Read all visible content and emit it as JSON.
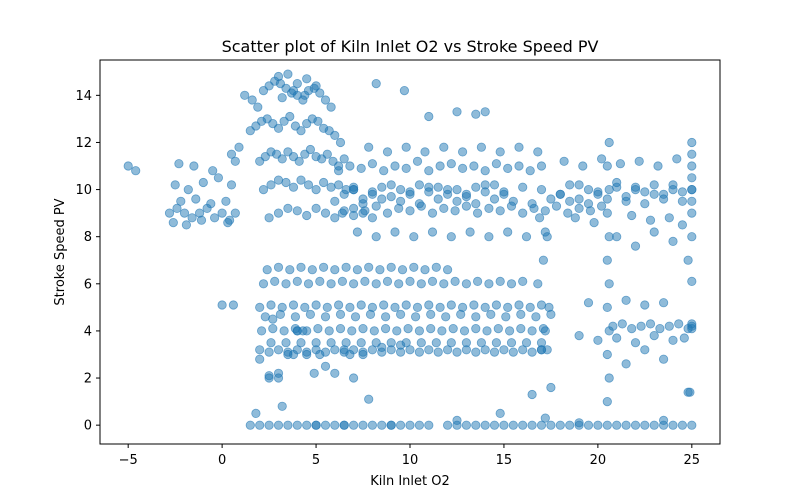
{
  "chart_data": {
    "type": "scatter",
    "title": "Scatter plot of Kiln Inlet O2 vs Stroke Speed PV",
    "xlabel": "Kiln Inlet O2",
    "ylabel": "Stroke Speed PV",
    "xlim": [
      -6.5,
      26.5
    ],
    "ylim": [
      -0.8,
      15.5
    ],
    "x_ticks": [
      -5,
      0,
      5,
      10,
      15,
      20,
      25
    ],
    "y_ticks": [
      0,
      2,
      4,
      6,
      8,
      10,
      12,
      14
    ],
    "grid": false,
    "legend": "none",
    "marker_color": "#1f77b4",
    "marker_alpha": 0.5,
    "series": [
      {
        "x": [
          -5.0,
          -4.6,
          -2.8,
          -2.4,
          -2.0,
          -1.6,
          -1.2,
          -0.8,
          -0.4,
          0.0,
          0.4,
          0.7,
          -2.5,
          -1.8,
          -1.0,
          -0.2,
          0.5,
          -2.2,
          -1.4,
          -0.6,
          0.2,
          -2.6,
          -1.9,
          -1.1,
          0.3,
          -2.3,
          -1.5,
          -0.5,
          0.0,
          0.6,
          0.9,
          0.5,
          0.7,
          1.2,
          1.6,
          1.9,
          2.2,
          2.5,
          2.8,
          3.1,
          3.4,
          3.7,
          4.0,
          4.3,
          4.6,
          4.9,
          5.2,
          5.5,
          5.8,
          1.5,
          1.8,
          2.1,
          2.4,
          2.7,
          3.0,
          3.3,
          3.6,
          3.9,
          4.2,
          4.5,
          4.8,
          5.1,
          5.4,
          5.7,
          6.0,
          6.3,
          2.0,
          2.3,
          2.6,
          2.9,
          3.2,
          3.5,
          3.8,
          4.1,
          4.4,
          4.7,
          5.0,
          5.3,
          5.6,
          5.9,
          6.2,
          6.5,
          2.2,
          2.6,
          3.0,
          3.4,
          3.8,
          4.2,
          4.6,
          5.0,
          5.4,
          5.8,
          6.2,
          6.6,
          7.0,
          2.5,
          3.0,
          3.5,
          4.0,
          4.5,
          5.0,
          5.5,
          6.0,
          6.5,
          7.0,
          7.5,
          8.0,
          3.0,
          3.5,
          4.0,
          4.5,
          5.0,
          3.2,
          3.8,
          4.4,
          6.0,
          6.5,
          7.0,
          7.5,
          8.0,
          8.5,
          9.0,
          9.5,
          10.0,
          10.5,
          11.0,
          11.5,
          12.0,
          12.5,
          13.0,
          13.5,
          14.0,
          14.5,
          15.0,
          6.2,
          6.8,
          7.4,
          8.0,
          8.6,
          9.2,
          9.8,
          10.4,
          11.0,
          11.6,
          12.2,
          12.8,
          13.4,
          14.0,
          14.6,
          15.2,
          15.8,
          16.4,
          17.0,
          6.4,
          7.0,
          7.6,
          8.2,
          8.8,
          9.4,
          10.0,
          10.6,
          11.2,
          11.8,
          12.4,
          13.0,
          13.6,
          14.2,
          14.8,
          15.4,
          16.0,
          16.6,
          17.2,
          17.8,
          18.4,
          19.0,
          19.6,
          20.2,
          7.0,
          8.0,
          9.0,
          10.0,
          11.0,
          12.0,
          13.0,
          14.0,
          15.0,
          16.0,
          17.0,
          18.0,
          19.0,
          20.0,
          21.0,
          22.0,
          23.0,
          24.0,
          25.0,
          7.5,
          8.5,
          9.5,
          10.5,
          11.5,
          12.5,
          13.5,
          14.5,
          15.5,
          16.5,
          17.5,
          18.5,
          19.5,
          20.5,
          21.5,
          22.5,
          23.5,
          24.5,
          7.2,
          8.2,
          9.2,
          10.2,
          11.2,
          12.2,
          13.2,
          14.2,
          15.2,
          16.2,
          17.2,
          7.8,
          8.8,
          9.8,
          10.8,
          11.8,
          12.8,
          13.8,
          14.8,
          15.8,
          16.8,
          2.0,
          2.5,
          3.0,
          3.5,
          4.0,
          4.5,
          5.0,
          5.5,
          6.0,
          6.5,
          7.0,
          7.5,
          8.0,
          8.5,
          9.0,
          9.5,
          10.0,
          10.5,
          11.0,
          11.5,
          12.0,
          12.5,
          13.0,
          13.5,
          14.0,
          14.5,
          15.0,
          15.5,
          16.0,
          16.5,
          17.0,
          17.3,
          2.1,
          2.7,
          3.3,
          3.9,
          4.5,
          5.1,
          5.7,
          6.3,
          6.9,
          7.5,
          8.1,
          8.7,
          9.3,
          9.9,
          10.5,
          11.1,
          11.7,
          12.3,
          12.9,
          13.5,
          14.1,
          14.7,
          15.3,
          15.9,
          16.5,
          17.1,
          2.3,
          3.1,
          3.9,
          4.7,
          5.5,
          6.3,
          7.1,
          7.9,
          8.7,
          9.5,
          10.3,
          11.1,
          11.9,
          12.7,
          13.5,
          14.3,
          15.1,
          15.9,
          16.7,
          17.5,
          2.0,
          2.6,
          3.2,
          3.8,
          4.4,
          5.0,
          5.6,
          6.2,
          6.8,
          7.4,
          8.0,
          8.6,
          9.2,
          9.8,
          10.4,
          11.0,
          11.6,
          12.2,
          12.8,
          13.4,
          14.0,
          14.6,
          15.2,
          15.8,
          16.4,
          17.0,
          2.2,
          2.8,
          3.4,
          4.0,
          4.6,
          5.2,
          5.8,
          6.4,
          7.0,
          7.6,
          8.2,
          8.8,
          9.4,
          10.0,
          10.6,
          11.2,
          11.8,
          12.4,
          13.0,
          13.6,
          14.2,
          14.8,
          15.4,
          16.0,
          2.4,
          3.0,
          3.6,
          4.2,
          4.8,
          5.4,
          6.0,
          6.6,
          7.2,
          7.8,
          8.4,
          9.0,
          9.6,
          10.2,
          10.8,
          11.4,
          12.0,
          2.6,
          3.4,
          4.2,
          5.0,
          5.8,
          6.6,
          7.4,
          8.2,
          9.0,
          9.8,
          10.6,
          11.4,
          12.2,
          13.0,
          13.8,
          14.6,
          15.4,
          16.2,
          17.0,
          17.0,
          17.2,
          17.4,
          16.8,
          17.1,
          17.3,
          16.9,
          20.5,
          20.6,
          20.5,
          20.6,
          20.5,
          20.6,
          20.5,
          20.6,
          20.5,
          20.6,
          20.5,
          20.6,
          25.0,
          25.0,
          25.0,
          25.0,
          25.0,
          25.0,
          25.0,
          25.0,
          25.0,
          25.0,
          25.0,
          25.0,
          24.8,
          24.9,
          18.0,
          18.5,
          19.0,
          19.5,
          20.0,
          21.0,
          21.5,
          22.0,
          22.5,
          23.0,
          23.5,
          24.0,
          24.5,
          18.2,
          19.2,
          20.2,
          21.2,
          22.2,
          23.2,
          24.2,
          18.8,
          19.8,
          21.8,
          22.8,
          23.8,
          19.0,
          20.0,
          21.0,
          22.0,
          23.0,
          24.0,
          24.6,
          19.5,
          21.5,
          22.5,
          23.5,
          20.8,
          21.3,
          21.8,
          22.3,
          22.8,
          23.3,
          23.8,
          24.3,
          24.8,
          21.0,
          22.0,
          23.0,
          24.0,
          24.5,
          22.5,
          23.5,
          21.5,
          1.5,
          2.0,
          2.5,
          3.0,
          3.5,
          4.0,
          4.5,
          5.0,
          5.5,
          6.0,
          6.5,
          7.0,
          7.5,
          8.0,
          8.5,
          9.0,
          9.5,
          10.0,
          10.5,
          11.0,
          12.0,
          12.5,
          13.0,
          13.5,
          14.0,
          14.5,
          15.0,
          15.5,
          16.0,
          16.5,
          17.0,
          17.5,
          18.0,
          18.5,
          19.0,
          19.5,
          20.0,
          20.5,
          21.0,
          21.5,
          22.0,
          22.5,
          23.0,
          23.5,
          24.0,
          24.5,
          25.0,
          1.8,
          3.2,
          7.8,
          14.8,
          17.2,
          2.5,
          3.0,
          2.0,
          3.0,
          4.0,
          6.0,
          7.0,
          12.5,
          16.5,
          17.5,
          19.0,
          23.5,
          24.8,
          5.0,
          6.5,
          9.0,
          4.0,
          4.3,
          3.8,
          5.2,
          6.8,
          9.7,
          8.2,
          11.0,
          12.5,
          13.5,
          14.0,
          2.5,
          4.9,
          2.7,
          3.5,
          4.5,
          5.5,
          6.5,
          7.5,
          8.5,
          9.5
        ],
        "y": [
          11.0,
          10.8,
          9.0,
          9.2,
          9.0,
          8.8,
          9.0,
          9.2,
          8.8,
          9.0,
          8.7,
          9.0,
          10.2,
          10.0,
          10.3,
          10.5,
          10.2,
          9.5,
          9.6,
          9.4,
          9.5,
          8.6,
          8.5,
          8.7,
          8.6,
          11.1,
          11.0,
          10.8,
          5.1,
          5.1,
          11.8,
          11.5,
          11.2,
          14.0,
          13.8,
          13.5,
          14.2,
          14.4,
          14.6,
          14.5,
          14.3,
          14.1,
          14.0,
          13.8,
          14.2,
          14.3,
          14.1,
          13.8,
          13.5,
          12.5,
          12.7,
          12.9,
          13.0,
          12.8,
          12.6,
          12.9,
          13.1,
          12.7,
          12.5,
          12.8,
          13.0,
          12.9,
          12.6,
          12.5,
          12.3,
          12.0,
          11.2,
          11.4,
          11.6,
          11.5,
          11.3,
          11.6,
          11.4,
          11.2,
          11.5,
          11.7,
          11.4,
          11.3,
          11.5,
          11.2,
          11.0,
          11.3,
          10.0,
          10.2,
          10.4,
          10.3,
          10.1,
          10.4,
          10.2,
          10.0,
          10.3,
          10.1,
          10.2,
          10.0,
          10.1,
          8.8,
          9.0,
          9.2,
          9.1,
          8.9,
          9.2,
          9.0,
          8.8,
          9.1,
          8.9,
          9.0,
          8.8,
          14.8,
          14.9,
          14.5,
          14.7,
          14.4,
          13.9,
          14.2,
          14.0,
          9.5,
          9.8,
          10.0,
          9.6,
          9.9,
          10.1,
          9.7,
          10.0,
          9.8,
          10.2,
          9.9,
          10.1,
          9.8,
          10.0,
          9.7,
          10.1,
          9.9,
          10.2,
          9.8,
          10.8,
          11.0,
          10.9,
          11.1,
          10.8,
          11.0,
          10.9,
          11.2,
          10.8,
          11.0,
          11.1,
          10.9,
          11.0,
          10.8,
          11.1,
          10.9,
          11.0,
          10.8,
          11.0,
          9.0,
          9.2,
          9.1,
          9.3,
          9.0,
          9.2,
          9.1,
          9.3,
          9.0,
          9.2,
          9.1,
          9.3,
          9.0,
          9.2,
          9.1,
          9.3,
          9.0,
          9.2,
          9.1,
          9.3,
          9.0,
          9.2,
          9.1,
          9.3,
          10.0,
          9.8,
          10.2,
          9.9,
          10.1,
          10.0,
          9.8,
          10.2,
          9.9,
          10.1,
          10.0,
          9.8,
          10.2,
          9.9,
          10.1,
          10.0,
          9.8,
          10.2,
          10.0,
          9.4,
          9.6,
          9.5,
          9.4,
          9.6,
          9.5,
          9.4,
          9.6,
          9.5,
          9.4,
          9.6,
          9.5,
          9.4,
          9.6,
          9.5,
          9.4,
          9.6,
          9.5,
          8.2,
          8.0,
          8.2,
          8.0,
          8.2,
          8.0,
          8.2,
          8.0,
          8.2,
          8.0,
          8.2,
          11.8,
          11.6,
          11.8,
          11.6,
          11.8,
          11.6,
          11.8,
          11.6,
          11.8,
          11.6,
          3.2,
          3.1,
          3.2,
          3.1,
          3.2,
          3.1,
          3.2,
          3.1,
          3.2,
          3.1,
          3.2,
          3.1,
          3.2,
          3.1,
          3.2,
          3.1,
          3.2,
          3.1,
          3.2,
          3.1,
          3.2,
          3.1,
          3.2,
          3.1,
          3.2,
          3.1,
          3.2,
          3.1,
          3.2,
          3.1,
          3.2,
          3.2,
          4.0,
          4.1,
          4.0,
          4.1,
          4.0,
          4.1,
          4.0,
          4.1,
          4.0,
          4.1,
          4.0,
          4.1,
          4.0,
          4.1,
          4.0,
          4.1,
          4.0,
          4.1,
          4.0,
          4.1,
          4.0,
          4.1,
          4.0,
          4.1,
          4.0,
          4.1,
          4.6,
          4.7,
          4.6,
          4.7,
          4.6,
          4.7,
          4.6,
          4.7,
          4.6,
          4.7,
          4.6,
          4.7,
          4.6,
          4.7,
          4.6,
          4.7,
          4.6,
          4.7,
          4.6,
          4.7,
          5.0,
          5.1,
          5.0,
          5.1,
          5.0,
          5.1,
          5.0,
          5.1,
          5.0,
          5.1,
          5.0,
          5.1,
          5.0,
          5.1,
          5.0,
          5.1,
          5.0,
          5.1,
          5.0,
          5.1,
          5.0,
          5.1,
          5.0,
          5.1,
          5.0,
          5.1,
          6.0,
          6.1,
          6.0,
          6.1,
          6.0,
          6.1,
          6.0,
          6.1,
          6.0,
          6.1,
          6.0,
          6.1,
          6.0,
          6.1,
          6.0,
          6.1,
          6.0,
          6.1,
          6.0,
          6.1,
          6.0,
          6.1,
          6.0,
          6.1,
          6.6,
          6.7,
          6.6,
          6.7,
          6.6,
          6.7,
          6.6,
          6.7,
          6.6,
          6.7,
          6.6,
          6.7,
          6.6,
          6.7,
          6.6,
          6.7,
          6.6,
          3.5,
          3.5,
          3.5,
          3.5,
          3.5,
          3.5,
          3.5,
          3.5,
          3.5,
          3.5,
          3.5,
          3.5,
          3.5,
          3.5,
          3.5,
          3.5,
          3.5,
          3.5,
          3.5,
          3.2,
          4.0,
          5.0,
          6.0,
          7.0,
          8.0,
          8.8,
          1.0,
          2.0,
          3.0,
          4.0,
          5.0,
          6.0,
          7.0,
          8.0,
          9.0,
          10.0,
          11.0,
          12.0,
          4.2,
          4.1,
          4.3,
          6.1,
          8.0,
          9.0,
          10.0,
          10.5,
          11.0,
          11.5,
          12.0,
          9.5,
          7.0,
          1.4,
          9.8,
          10.2,
          9.6,
          10.0,
          9.8,
          10.3,
          9.7,
          10.1,
          9.9,
          10.2,
          9.8,
          10.0,
          9.9,
          11.2,
          11.0,
          11.3,
          11.1,
          11.2,
          11.0,
          11.3,
          8.8,
          8.6,
          8.9,
          8.7,
          8.8,
          3.8,
          3.6,
          3.7,
          3.5,
          3.8,
          3.6,
          3.7,
          5.2,
          5.3,
          5.1,
          5.2,
          4.2,
          4.3,
          4.1,
          4.2,
          4.3,
          4.1,
          4.2,
          4.3,
          4.1,
          8.0,
          7.6,
          8.2,
          7.8,
          8.5,
          3.2,
          2.8,
          2.6,
          0.0,
          0.0,
          0.0,
          0.0,
          0.0,
          0.0,
          0.0,
          0.0,
          0.0,
          0.0,
          0.0,
          0.0,
          0.0,
          0.0,
          0.0,
          0.0,
          0.0,
          0.0,
          0.0,
          0.0,
          0.0,
          0.0,
          0.0,
          0.0,
          0.0,
          0.0,
          0.0,
          0.0,
          0.0,
          0.0,
          0.0,
          0.0,
          0.0,
          0.0,
          0.0,
          0.0,
          0.0,
          0.0,
          0.0,
          0.0,
          0.0,
          0.0,
          0.0,
          0.0,
          0.0,
          0.0,
          0.0,
          0.5,
          0.8,
          1.1,
          0.5,
          0.3,
          2.1,
          2.0,
          2.8,
          2.2,
          4.0,
          2.2,
          2.0,
          0.2,
          1.3,
          1.6,
          0.1,
          0.2,
          1.4,
          0.0,
          0.0,
          0.0,
          4.0,
          4.0,
          3.0,
          3.0,
          3.0,
          14.2,
          14.5,
          13.1,
          13.3,
          13.2,
          13.3,
          2.0,
          2.2,
          4.5,
          3.0,
          3.0,
          2.5,
          3.2,
          3.0,
          3.3,
          3.4
        ]
      }
    ]
  }
}
